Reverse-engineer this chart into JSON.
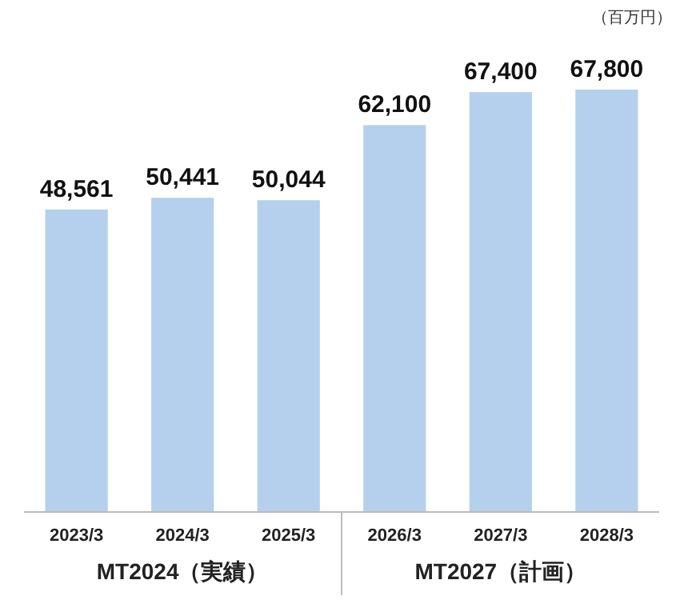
{
  "chart_data": {
    "type": "bar",
    "ylabel": "（百万円）",
    "categories": [
      "2023/3",
      "2024/3",
      "2025/3",
      "2026/3",
      "2027/3",
      "2028/3"
    ],
    "values": [
      48561,
      50441,
      50044,
      62100,
      67400,
      67800
    ],
    "color": "#b4d0ec",
    "value_labels": [
      "48,561",
      "50,441",
      "50,044",
      "62,100",
      "67,400",
      "67,800"
    ],
    "annotations": [
      "MT2024（実績）",
      "MT2027（計画）"
    ]
  }
}
